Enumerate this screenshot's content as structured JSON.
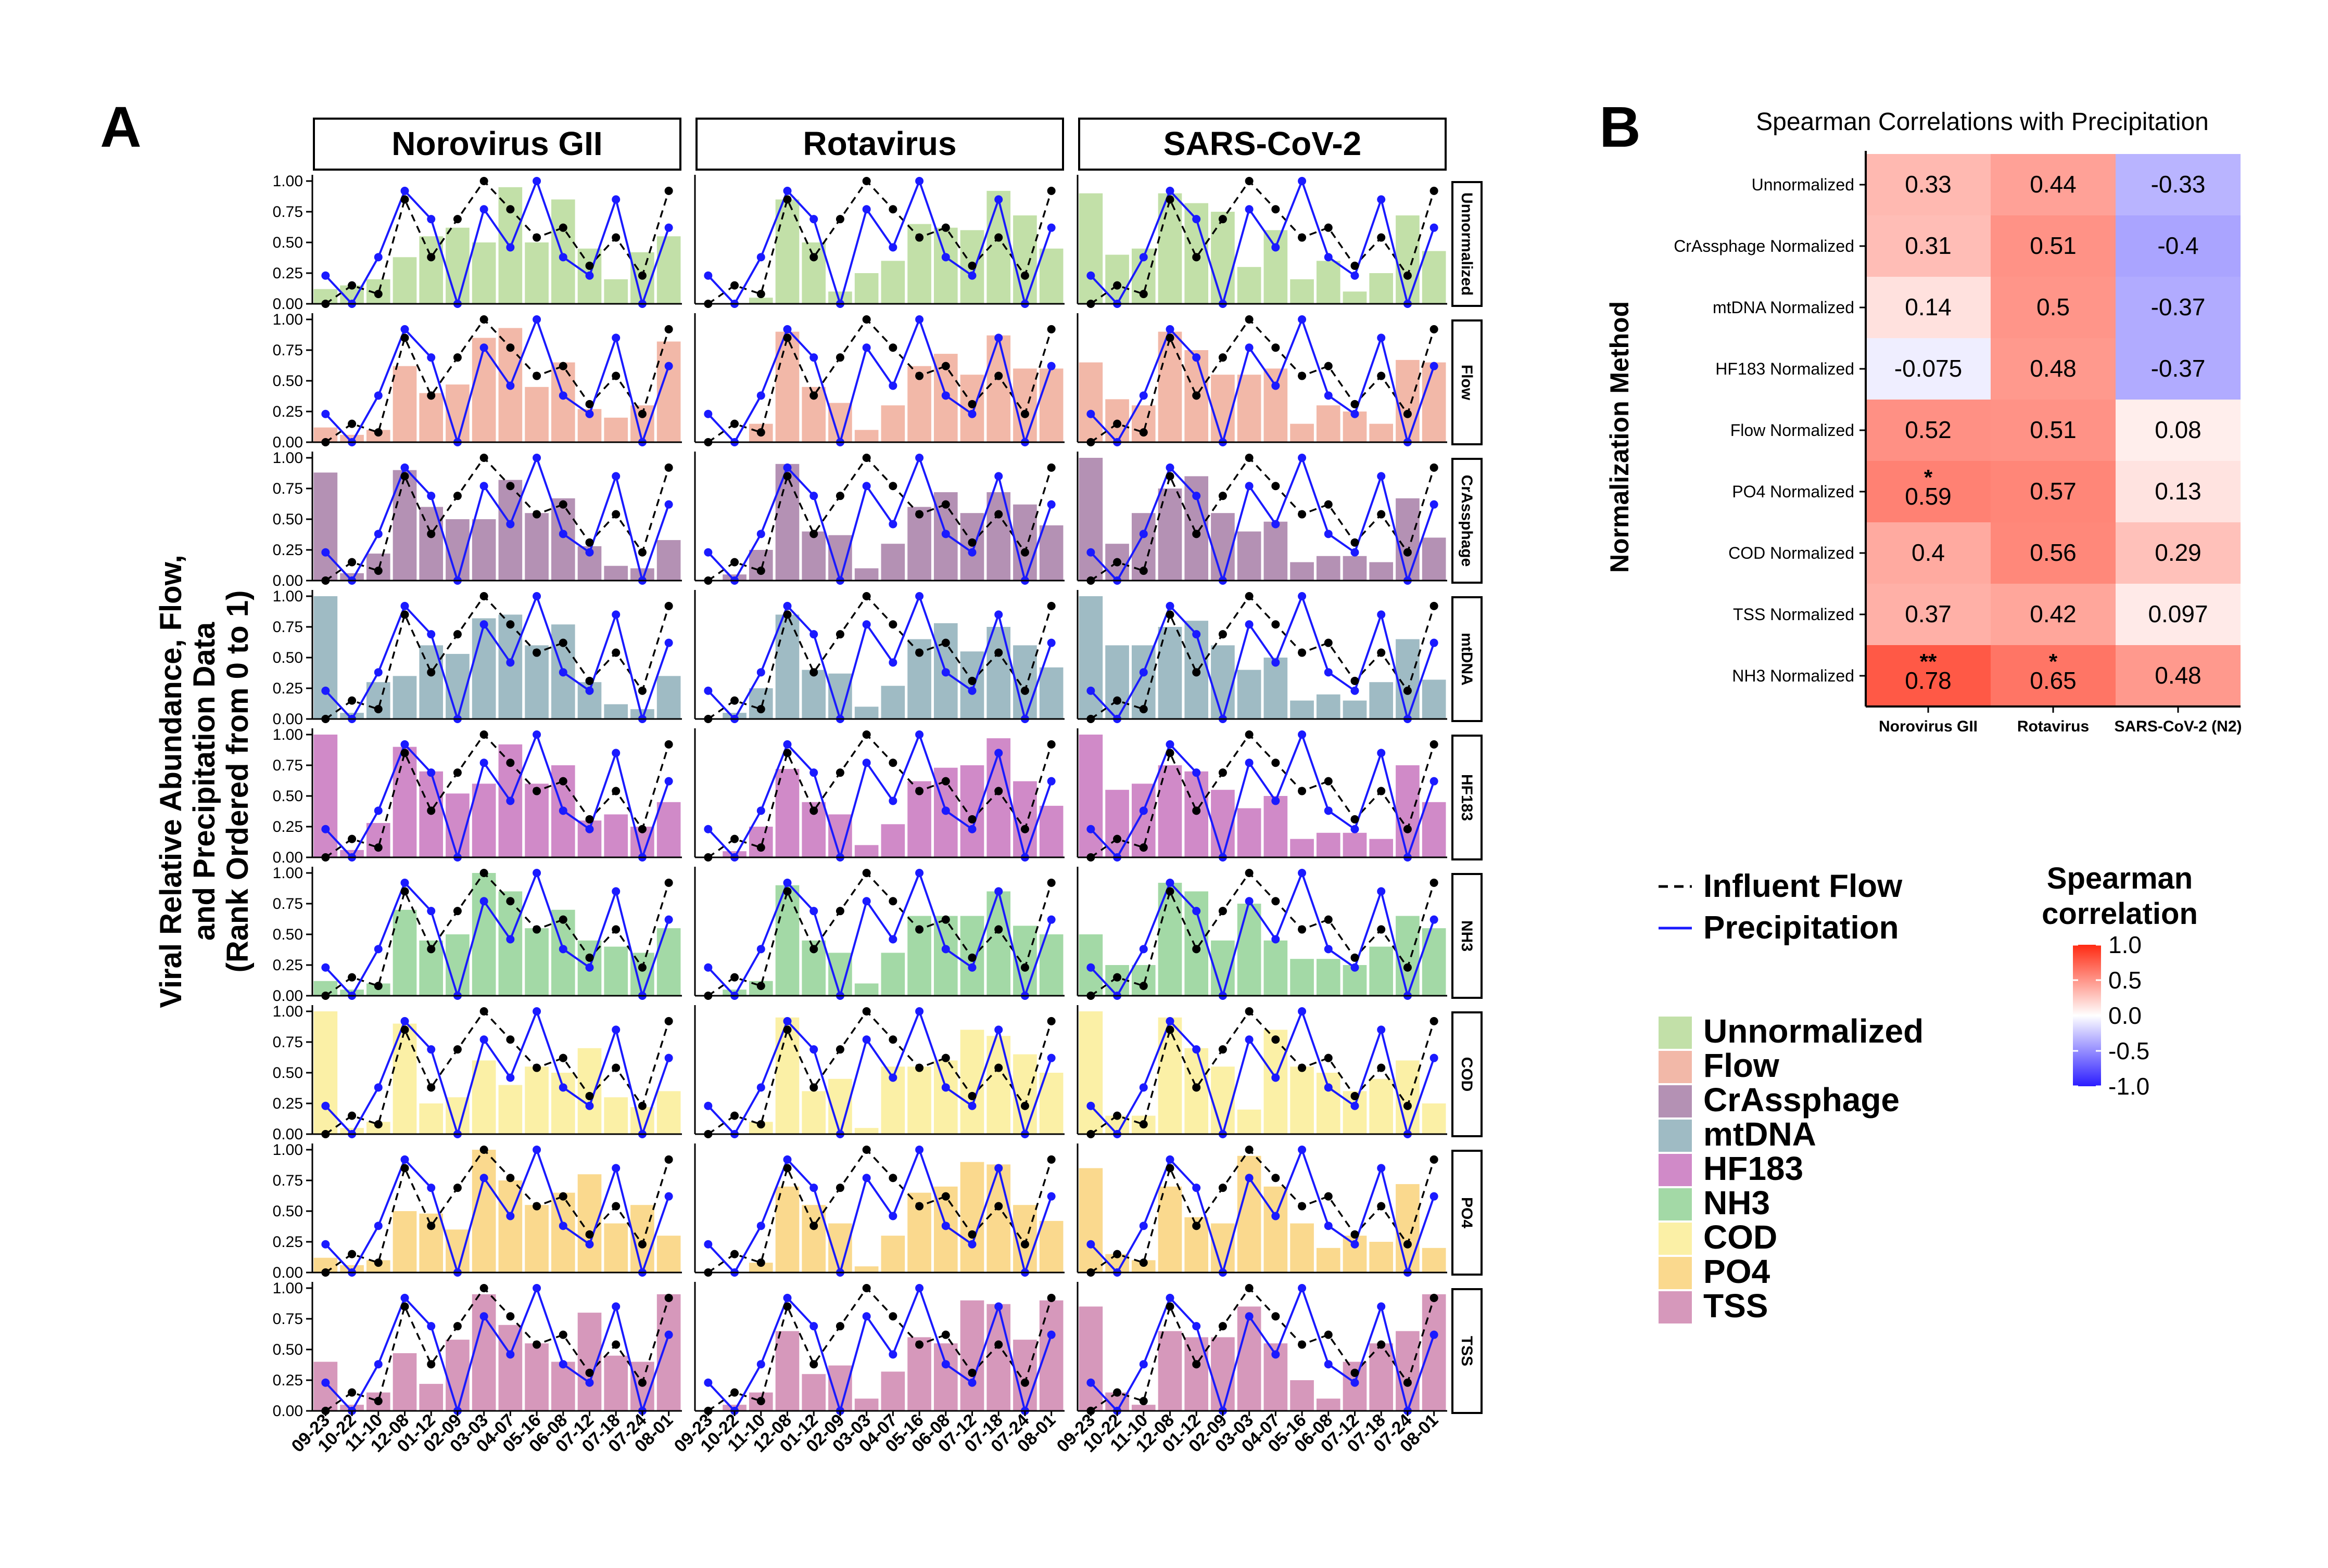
{
  "panel_a": {
    "label": "A",
    "y_label_lines": [
      "Viral Relative Abundance, Flow,",
      "and Precipitation Data",
      "(Rank Ordered from 0 to 1)"
    ]
  },
  "panel_b": {
    "label": "B"
  },
  "chart_data": [
    {
      "type": "bar",
      "name": "panel-a-faceted-bar-line",
      "columns": [
        "Norovirus GII",
        "Rotavirus",
        "SARS-CoV-2"
      ],
      "rows": [
        "Unnormalized",
        "Flow",
        "CrAssphage",
        "mtDNA",
        "HF183",
        "NH3",
        "COD",
        "PO4",
        "TSS"
      ],
      "row_colors": [
        "#c2e0a8",
        "#f2b8a8",
        "#b491b4",
        "#9fbbc4",
        "#d08ac8",
        "#a3d9a6",
        "#fbf0a6",
        "#fad98e",
        "#d698bb"
      ],
      "categories": [
        "09-23",
        "10-22",
        "11-10",
        "12-08",
        "01-12",
        "02-09",
        "03-03",
        "04-07",
        "05-16",
        "06-08",
        "07-12",
        "07-18",
        "07-24",
        "08-01"
      ],
      "y_ticks": [
        "0.00",
        "0.25",
        "0.50",
        "0.75",
        "1.00"
      ],
      "ylim": [
        0,
        1
      ],
      "flow_color": "#000000",
      "precip_color": "#1a1aff",
      "influent_flow": [
        0,
        0.15,
        0.08,
        0.85,
        0.38,
        0.69,
        1.0,
        0.77,
        0.54,
        0.62,
        0.31,
        0.54,
        0.23,
        0.92
      ],
      "precipitation": [
        0.23,
        0,
        0.38,
        0.92,
        0.69,
        0,
        0.77,
        0.46,
        1.0,
        0.38,
        0.23,
        0.85,
        0,
        0.62
      ],
      "bars": {
        "Norovirus GII": [
          [
            0.12,
            0.15,
            0.2,
            0.38,
            0.55,
            0.62,
            0.5,
            0.95,
            0.5,
            0.85,
            0.45,
            0.2,
            0.42,
            0.55
          ],
          [
            0.12,
            0.06,
            0.1,
            0.62,
            0.4,
            0.47,
            0.85,
            0.93,
            0.45,
            0.65,
            0.27,
            0.2,
            0.3,
            0.82
          ],
          [
            0.88,
            0.06,
            0.22,
            0.9,
            0.6,
            0.5,
            0.5,
            0.82,
            0.55,
            0.67,
            0.28,
            0.12,
            0.1,
            0.33
          ],
          [
            1.0,
            0.05,
            0.3,
            0.35,
            0.6,
            0.53,
            0.82,
            0.85,
            0.6,
            0.77,
            0.3,
            0.12,
            0.08,
            0.35
          ],
          [
            1.0,
            0.06,
            0.28,
            0.9,
            0.7,
            0.52,
            0.6,
            0.92,
            0.6,
            0.75,
            0.3,
            0.35,
            0.25,
            0.45
          ],
          [
            0.12,
            0.05,
            0.1,
            0.7,
            0.45,
            0.5,
            1.0,
            0.85,
            0.55,
            0.7,
            0.45,
            0.4,
            0.35,
            0.55
          ],
          [
            1.0,
            0.05,
            0.1,
            0.9,
            0.25,
            0.3,
            0.6,
            0.4,
            0.55,
            0.5,
            0.7,
            0.3,
            0.22,
            0.35
          ],
          [
            0.12,
            0.06,
            0.1,
            0.5,
            0.48,
            0.35,
            1.0,
            0.75,
            0.55,
            0.65,
            0.8,
            0.4,
            0.55,
            0.3
          ],
          [
            0.4,
            0.05,
            0.15,
            0.47,
            0.22,
            0.58,
            0.95,
            0.7,
            0.55,
            0.4,
            0.8,
            0.45,
            0.4,
            0.95
          ]
        ],
        "Rotavirus": [
          [
            0,
            0,
            0.05,
            0.85,
            0.5,
            0.1,
            0.25,
            0.35,
            0.65,
            0.62,
            0.6,
            0.92,
            0.72,
            0.45
          ],
          [
            0,
            0,
            0.15,
            0.9,
            0.45,
            0.32,
            0.1,
            0.3,
            0.62,
            0.72,
            0.55,
            0.87,
            0.6,
            0.6
          ],
          [
            0,
            0.05,
            0.25,
            0.95,
            0.4,
            0.37,
            0.1,
            0.3,
            0.6,
            0.72,
            0.55,
            0.72,
            0.62,
            0.45
          ],
          [
            0,
            0.05,
            0.25,
            0.85,
            0.4,
            0.37,
            0.1,
            0.27,
            0.65,
            0.78,
            0.55,
            0.75,
            0.6,
            0.42
          ],
          [
            0,
            0.05,
            0.25,
            0.72,
            0.45,
            0.35,
            0.1,
            0.27,
            0.62,
            0.73,
            0.75,
            0.97,
            0.62,
            0.42
          ],
          [
            0,
            0.05,
            0.12,
            0.9,
            0.45,
            0.35,
            0.1,
            0.35,
            0.65,
            0.65,
            0.65,
            0.85,
            0.57,
            0.5
          ],
          [
            0,
            0,
            0.1,
            0.95,
            0.35,
            0.45,
            0.05,
            0.55,
            0.55,
            0.6,
            0.85,
            0.8,
            0.65,
            0.5
          ],
          [
            0,
            0,
            0.08,
            0.7,
            0.55,
            0.4,
            0.05,
            0.3,
            0.65,
            0.7,
            0.9,
            0.88,
            0.55,
            0.42
          ],
          [
            0,
            0.05,
            0.15,
            0.65,
            0.3,
            0.37,
            0.1,
            0.32,
            0.6,
            0.55,
            0.9,
            0.87,
            0.58,
            0.9
          ]
        ],
        "SARS-CoV-2": [
          [
            0.9,
            0.4,
            0.45,
            0.9,
            0.82,
            0.75,
            0.3,
            0.6,
            0.2,
            0.35,
            0.1,
            0.25,
            0.72,
            0.43
          ],
          [
            0.65,
            0.35,
            0.3,
            0.9,
            0.75,
            0.55,
            0.55,
            0.6,
            0.15,
            0.3,
            0.25,
            0.15,
            0.67,
            0.65
          ],
          [
            1.0,
            0.3,
            0.55,
            0.75,
            0.85,
            0.55,
            0.4,
            0.48,
            0.15,
            0.2,
            0.2,
            0.15,
            0.67,
            0.35
          ],
          [
            1.0,
            0.6,
            0.6,
            0.75,
            0.8,
            0.6,
            0.4,
            0.5,
            0.15,
            0.2,
            0.15,
            0.3,
            0.65,
            0.32
          ],
          [
            1.0,
            0.55,
            0.6,
            0.75,
            0.7,
            0.55,
            0.4,
            0.5,
            0.15,
            0.2,
            0.2,
            0.15,
            0.75,
            0.45
          ],
          [
            0.5,
            0.25,
            0.25,
            0.92,
            0.85,
            0.45,
            0.75,
            0.45,
            0.3,
            0.3,
            0.25,
            0.4,
            0.65,
            0.55
          ],
          [
            1.0,
            0.15,
            0.15,
            0.95,
            0.7,
            0.55,
            0.2,
            0.85,
            0.55,
            0.5,
            0.35,
            0.45,
            0.6,
            0.25
          ],
          [
            0.85,
            0.15,
            0.1,
            0.7,
            0.45,
            0.4,
            0.95,
            0.7,
            0.4,
            0.2,
            0.3,
            0.25,
            0.72,
            0.2
          ],
          [
            0.85,
            0.15,
            0.05,
            0.65,
            0.6,
            0.6,
            0.85,
            0.55,
            0.25,
            0.1,
            0.4,
            0.55,
            0.65,
            0.95
          ]
        ]
      },
      "line_legend": {
        "flow_label": "Influent Flow",
        "precip_label": "Precipitation"
      },
      "fill_legend": [
        "Unnormalized",
        "Flow",
        "CrAssphage",
        "mtDNA",
        "HF183",
        "NH3",
        "COD",
        "PO4",
        "TSS"
      ]
    },
    {
      "type": "heatmap",
      "name": "panel-b-heatmap",
      "title": "Spearman Correlations with Precipitation",
      "ylabel": "Normalization Method",
      "rows": [
        "Unnormalized",
        "CrAssphage Normalized",
        "mtDNA Normalized",
        "HF183 Normalized",
        "Flow Normalized",
        "PO4 Normalized",
        "COD Normalized",
        "TSS Normalized",
        "NH3 Normalized"
      ],
      "columns": [
        "Norovirus GII",
        "Rotavirus",
        "SARS-CoV-2 (N2)"
      ],
      "values": [
        [
          0.33,
          0.44,
          -0.33
        ],
        [
          0.31,
          0.51,
          -0.4
        ],
        [
          0.14,
          0.5,
          -0.37
        ],
        [
          -0.075,
          0.48,
          -0.37
        ],
        [
          0.52,
          0.51,
          0.08
        ],
        [
          0.59,
          0.57,
          0.13
        ],
        [
          0.4,
          0.56,
          0.29
        ],
        [
          0.37,
          0.42,
          0.097
        ],
        [
          0.78,
          0.65,
          0.48
        ]
      ],
      "labels": [
        [
          "0.33",
          "0.44",
          "-0.33"
        ],
        [
          "0.31",
          "0.51",
          "-0.4"
        ],
        [
          "0.14",
          "0.5",
          "-0.37"
        ],
        [
          "-0.075",
          "0.48",
          "-0.37"
        ],
        [
          "0.52",
          "0.51",
          "0.08"
        ],
        [
          "0.59",
          "0.57",
          "0.13"
        ],
        [
          "0.4",
          "0.56",
          "0.29"
        ],
        [
          "0.37",
          "0.42",
          "0.097"
        ],
        [
          "0.78",
          "0.65",
          "0.48"
        ]
      ],
      "significance": [
        [
          "",
          "",
          ""
        ],
        [
          "",
          "",
          ""
        ],
        [
          "",
          "",
          ""
        ],
        [
          "",
          "",
          ""
        ],
        [
          "",
          "",
          ""
        ],
        [
          "*",
          "",
          ""
        ],
        [
          "",
          "",
          ""
        ],
        [
          "",
          "",
          ""
        ],
        [
          "**",
          "*",
          ""
        ]
      ],
      "colorbar": {
        "title_lines": [
          "Spearman",
          "correlation"
        ],
        "ticks": [
          "1.0",
          "0.5",
          "0.0",
          "-0.5",
          "-1.0"
        ],
        "range": [
          -1,
          1
        ],
        "low_color": "#2b1cff",
        "mid_color": "#ffffff",
        "high_color": "#ff2a12"
      }
    }
  ]
}
